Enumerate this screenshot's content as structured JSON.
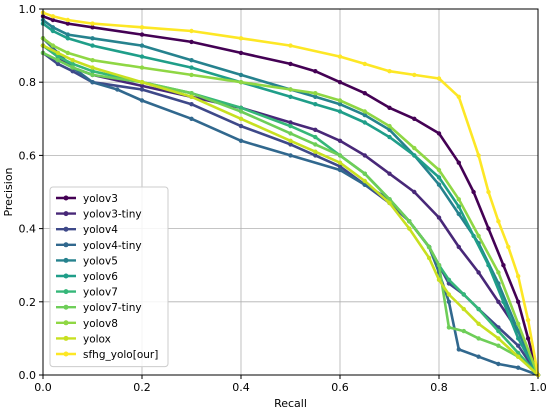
{
  "chart_data": {
    "type": "line",
    "title": "",
    "xlabel": "Recall",
    "ylabel": "Precision",
    "xlim": [
      0.0,
      1.0
    ],
    "ylim": [
      0.0,
      1.0
    ],
    "xticks": [
      "0.0",
      "0.2",
      "0.4",
      "0.6",
      "0.8",
      "1.0"
    ],
    "yticks": [
      "0.0",
      "0.2",
      "0.4",
      "0.6",
      "0.8",
      "1.0"
    ],
    "grid": true,
    "legend_position": "lower-left",
    "series": [
      {
        "name": "yolov3",
        "color": "#440154",
        "x": [
          0.0,
          0.02,
          0.05,
          0.1,
          0.2,
          0.3,
          0.4,
          0.5,
          0.55,
          0.6,
          0.65,
          0.7,
          0.75,
          0.8,
          0.84,
          0.87,
          0.9,
          0.93,
          0.96,
          0.98,
          1.0
        ],
        "y": [
          0.98,
          0.97,
          0.96,
          0.95,
          0.93,
          0.91,
          0.88,
          0.85,
          0.83,
          0.8,
          0.77,
          0.73,
          0.7,
          0.66,
          0.58,
          0.5,
          0.4,
          0.3,
          0.2,
          0.1,
          0.0
        ]
      },
      {
        "name": "yolov3-tiny",
        "color": "#482878",
        "x": [
          0.0,
          0.03,
          0.06,
          0.1,
          0.2,
          0.3,
          0.4,
          0.5,
          0.55,
          0.6,
          0.65,
          0.7,
          0.75,
          0.8,
          0.84,
          0.88,
          0.92,
          0.96,
          1.0
        ],
        "y": [
          0.9,
          0.87,
          0.84,
          0.82,
          0.79,
          0.76,
          0.73,
          0.69,
          0.67,
          0.64,
          0.6,
          0.55,
          0.5,
          0.43,
          0.35,
          0.28,
          0.2,
          0.12,
          0.0
        ]
      },
      {
        "name": "yolov4",
        "color": "#3e4989",
        "x": [
          0.0,
          0.03,
          0.06,
          0.1,
          0.2,
          0.3,
          0.4,
          0.5,
          0.55,
          0.6,
          0.65,
          0.7,
          0.74,
          0.78,
          0.8,
          0.82,
          0.85,
          0.88,
          0.92,
          0.96,
          1.0
        ],
        "y": [
          0.88,
          0.85,
          0.83,
          0.8,
          0.78,
          0.74,
          0.68,
          0.63,
          0.6,
          0.57,
          0.52,
          0.47,
          0.42,
          0.35,
          0.3,
          0.25,
          0.22,
          0.18,
          0.13,
          0.08,
          0.0
        ]
      },
      {
        "name": "yolov4-tiny",
        "color": "#31688e",
        "x": [
          0.0,
          0.03,
          0.06,
          0.1,
          0.15,
          0.2,
          0.3,
          0.4,
          0.5,
          0.6,
          0.65,
          0.7,
          0.74,
          0.78,
          0.8,
          0.82,
          0.84,
          0.88,
          0.92,
          0.96,
          1.0
        ],
        "y": [
          0.92,
          0.88,
          0.84,
          0.8,
          0.78,
          0.75,
          0.7,
          0.64,
          0.6,
          0.56,
          0.52,
          0.48,
          0.42,
          0.35,
          0.28,
          0.2,
          0.07,
          0.05,
          0.03,
          0.02,
          0.0
        ]
      },
      {
        "name": "yolov5",
        "color": "#26828e",
        "x": [
          0.0,
          0.02,
          0.05,
          0.1,
          0.2,
          0.3,
          0.4,
          0.5,
          0.55,
          0.6,
          0.65,
          0.7,
          0.75,
          0.8,
          0.84,
          0.88,
          0.92,
          0.96,
          1.0
        ],
        "y": [
          0.97,
          0.95,
          0.93,
          0.92,
          0.9,
          0.86,
          0.82,
          0.78,
          0.76,
          0.74,
          0.71,
          0.67,
          0.6,
          0.52,
          0.44,
          0.36,
          0.25,
          0.12,
          0.0
        ]
      },
      {
        "name": "yolov6",
        "color": "#1f9e89",
        "x": [
          0.0,
          0.02,
          0.05,
          0.1,
          0.2,
          0.3,
          0.4,
          0.5,
          0.55,
          0.6,
          0.65,
          0.7,
          0.75,
          0.8,
          0.84,
          0.87,
          0.9,
          0.93,
          0.96,
          1.0
        ],
        "y": [
          0.96,
          0.94,
          0.92,
          0.9,
          0.87,
          0.84,
          0.8,
          0.76,
          0.74,
          0.72,
          0.69,
          0.65,
          0.6,
          0.54,
          0.46,
          0.38,
          0.3,
          0.2,
          0.1,
          0.0
        ]
      },
      {
        "name": "yolov7",
        "color": "#35b779",
        "x": [
          0.0,
          0.03,
          0.06,
          0.1,
          0.2,
          0.3,
          0.4,
          0.5,
          0.55,
          0.6,
          0.65,
          0.7,
          0.74,
          0.78,
          0.8,
          0.82,
          0.85,
          0.88,
          0.92,
          0.96,
          1.0
        ],
        "y": [
          0.9,
          0.87,
          0.85,
          0.83,
          0.8,
          0.77,
          0.73,
          0.68,
          0.65,
          0.6,
          0.55,
          0.48,
          0.42,
          0.35,
          0.3,
          0.26,
          0.22,
          0.18,
          0.12,
          0.06,
          0.0
        ]
      },
      {
        "name": "yolov7-tiny",
        "color": "#6ece58",
        "x": [
          0.0,
          0.03,
          0.06,
          0.1,
          0.2,
          0.3,
          0.4,
          0.5,
          0.55,
          0.6,
          0.65,
          0.7,
          0.74,
          0.78,
          0.8,
          0.82,
          0.85,
          0.88,
          0.92,
          0.96,
          1.0
        ],
        "y": [
          0.88,
          0.86,
          0.84,
          0.82,
          0.8,
          0.77,
          0.72,
          0.66,
          0.63,
          0.6,
          0.55,
          0.48,
          0.42,
          0.35,
          0.3,
          0.13,
          0.12,
          0.1,
          0.08,
          0.05,
          0.0
        ]
      },
      {
        "name": "yolov8",
        "color": "#8fd744",
        "x": [
          0.0,
          0.02,
          0.05,
          0.1,
          0.2,
          0.3,
          0.4,
          0.5,
          0.55,
          0.6,
          0.65,
          0.7,
          0.75,
          0.8,
          0.84,
          0.88,
          0.92,
          0.96,
          1.0
        ],
        "y": [
          0.92,
          0.9,
          0.88,
          0.86,
          0.84,
          0.82,
          0.8,
          0.78,
          0.77,
          0.75,
          0.72,
          0.68,
          0.62,
          0.56,
          0.48,
          0.38,
          0.28,
          0.14,
          0.0
        ]
      },
      {
        "name": "yolox",
        "color": "#c8e020",
        "x": [
          0.0,
          0.03,
          0.06,
          0.1,
          0.2,
          0.3,
          0.4,
          0.5,
          0.55,
          0.6,
          0.65,
          0.7,
          0.74,
          0.78,
          0.8,
          0.82,
          0.85,
          0.88,
          0.92,
          0.96,
          1.0
        ],
        "y": [
          0.9,
          0.88,
          0.86,
          0.84,
          0.8,
          0.76,
          0.7,
          0.64,
          0.61,
          0.58,
          0.53,
          0.47,
          0.4,
          0.32,
          0.26,
          0.22,
          0.18,
          0.14,
          0.1,
          0.05,
          0.0
        ]
      },
      {
        "name": "sfhg_yolo[our]",
        "color": "#fde725",
        "x": [
          0.0,
          0.02,
          0.05,
          0.1,
          0.2,
          0.3,
          0.4,
          0.5,
          0.6,
          0.65,
          0.7,
          0.75,
          0.8,
          0.84,
          0.88,
          0.9,
          0.92,
          0.94,
          0.96,
          0.98,
          1.0
        ],
        "y": [
          0.99,
          0.98,
          0.97,
          0.96,
          0.95,
          0.94,
          0.92,
          0.9,
          0.87,
          0.85,
          0.83,
          0.82,
          0.81,
          0.76,
          0.6,
          0.5,
          0.42,
          0.35,
          0.27,
          0.15,
          0.0
        ]
      }
    ]
  }
}
